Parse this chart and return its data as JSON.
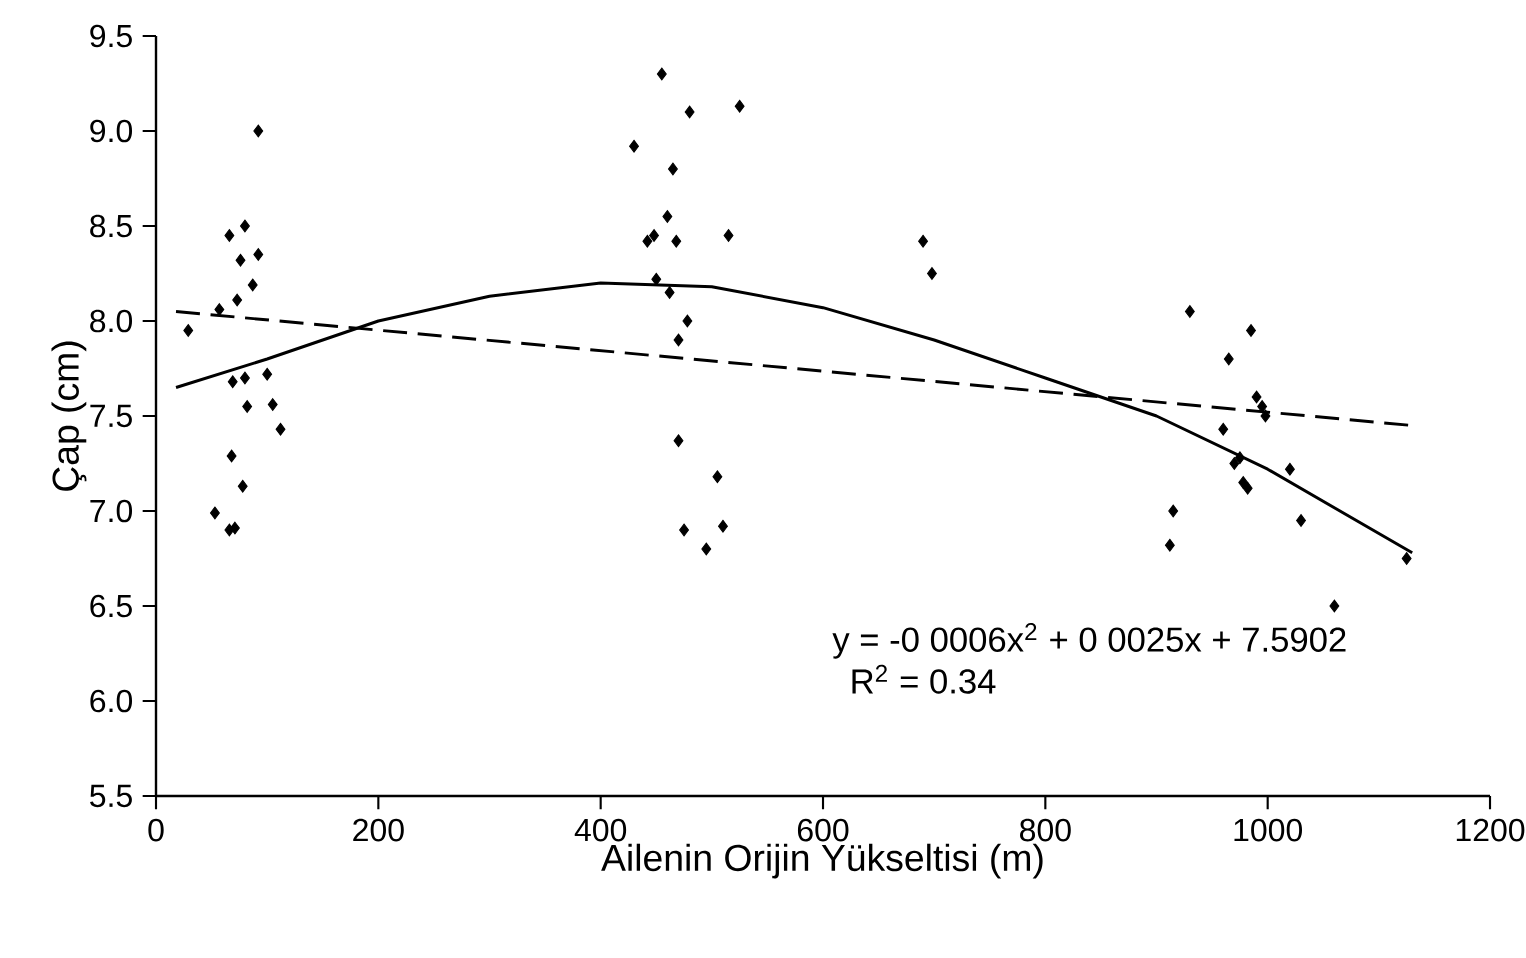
{
  "chart_data": {
    "type": "scatter",
    "xlabel": "Ailenin Orijin Yükseltisi (m)",
    "ylabel": "Çap (cm)",
    "xlim": [
      0,
      1200
    ],
    "ylim": [
      5.5,
      9.5
    ],
    "xticks": [
      0,
      200,
      400,
      600,
      800,
      1000,
      1200
    ],
    "yticks": [
      {
        "value": 5.5,
        "label": "5.5"
      },
      {
        "value": 6,
        "label": "6.0"
      },
      {
        "value": 6.5,
        "label": "6.5"
      },
      {
        "value": 7,
        "label": "7.0"
      },
      {
        "value": 7.5,
        "label": "7.5"
      },
      {
        "value": 8,
        "label": "8.0"
      },
      {
        "value": 8.5,
        "label": "8.5"
      },
      {
        "value": 9,
        "label": "9.0"
      },
      {
        "value": 9.5,
        "label": "9.5"
      }
    ],
    "grid": false,
    "series": [
      {
        "color": "#000000",
        "marker": "diamond",
        "x": [
          29,
          57,
          73,
          66,
          80,
          76,
          92,
          87,
          92,
          69,
          80,
          100,
          82,
          105,
          112,
          68,
          78,
          53,
          66,
          71,
          430,
          442,
          448,
          450,
          455,
          460,
          462,
          465,
          468,
          470,
          478,
          480,
          475,
          470,
          495,
          505,
          510,
          515,
          525,
          690,
          698,
          930,
          915,
          912,
          960,
          965,
          970,
          975,
          978,
          982,
          985,
          990,
          995,
          998,
          1020,
          1030,
          1060,
          1125
        ],
        "values": [
          7.95,
          8.06,
          8.11,
          8.45,
          8.5,
          8.32,
          8.35,
          8.19,
          9.0,
          7.68,
          7.7,
          7.72,
          7.55,
          7.56,
          7.43,
          7.29,
          7.13,
          6.99,
          6.9,
          6.91,
          8.92,
          8.42,
          8.45,
          8.22,
          9.3,
          8.55,
          8.15,
          8.8,
          8.42,
          7.9,
          8.0,
          9.1,
          6.9,
          7.37,
          6.8,
          7.18,
          6.92,
          8.45,
          9.13,
          8.42,
          8.25,
          8.05,
          7.0,
          6.82,
          7.43,
          7.8,
          7.25,
          7.28,
          7.15,
          7.12,
          7.95,
          7.6,
          7.55,
          7.5,
          7.22,
          6.95,
          6.5,
          6.75
        ]
      },
      {
        "type": "line",
        "color": "#000000",
        "line_style": "solid",
        "marker": "none",
        "x": [
          18,
          100,
          200,
          300,
          400,
          500,
          600,
          700,
          800,
          900,
          1000,
          1130
        ],
        "values": [
          7.65,
          7.8,
          8.0,
          8.13,
          8.2,
          8.18,
          8.07,
          7.9,
          7.7,
          7.5,
          7.22,
          6.78
        ]
      },
      {
        "type": "line",
        "color": "#000000",
        "line_style": "dashed",
        "marker": "none",
        "x": [
          18,
          1130
        ],
        "values": [
          8.05,
          7.45
        ]
      }
    ],
    "annotations": [
      "y = -0 0006x$^{2}$ + 0 0025x + 7.5902",
      "R$^{2}$ = 0.34"
    ]
  }
}
